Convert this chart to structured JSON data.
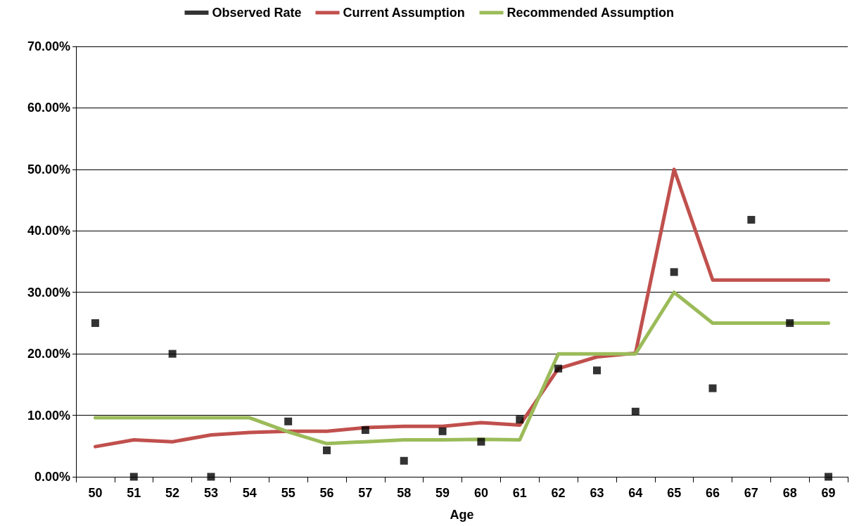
{
  "chart_data": {
    "type": "line",
    "xlabel": "Age",
    "categories": [
      "50",
      "51",
      "52",
      "53",
      "54",
      "55",
      "56",
      "57",
      "58",
      "59",
      "60",
      "61",
      "62",
      "63",
      "64",
      "65",
      "66",
      "67",
      "68",
      "69"
    ],
    "series": [
      {
        "name": "Observed Rate",
        "type": "scatter",
        "marker": "square",
        "color": "#000000",
        "values": [
          25,
          0,
          20,
          0,
          null,
          9.0,
          4.3,
          7.6,
          2.6,
          7.4,
          5.7,
          9.3,
          17.6,
          17.3,
          10.6,
          33.3,
          14.4,
          41.8,
          25,
          0
        ]
      },
      {
        "name": "Current Assumption",
        "color": "#c0504d",
        "values": [
          4.9,
          6.0,
          5.7,
          6.8,
          7.2,
          7.4,
          7.4,
          8.0,
          8.2,
          8.2,
          8.8,
          8.4,
          17.6,
          19.5,
          20.1,
          50,
          32,
          32,
          32,
          32
        ]
      },
      {
        "name": "Recommended Assumption",
        "color": "#9bbb59",
        "values": [
          9.6,
          9.6,
          9.6,
          9.6,
          9.6,
          7.3,
          5.4,
          5.7,
          6.0,
          6.0,
          6.1,
          6.0,
          20,
          20,
          20,
          30,
          25,
          25,
          25,
          25
        ]
      }
    ],
    "ylim": [
      0,
      70
    ],
    "yticks": [
      {
        "value": 0,
        "label": "0.00%"
      },
      {
        "value": 10,
        "label": "10.00%"
      },
      {
        "value": 20,
        "label": "20.00%"
      },
      {
        "value": 30,
        "label": "30.00%"
      },
      {
        "value": 40,
        "label": "40.00%"
      },
      {
        "value": 50,
        "label": "50.00%"
      },
      {
        "value": 60,
        "label": "60.00%"
      },
      {
        "value": 70,
        "label": "70.00%"
      }
    ],
    "grid": "y",
    "legend": "top",
    "marker": "none",
    "line_style": "solid"
  }
}
